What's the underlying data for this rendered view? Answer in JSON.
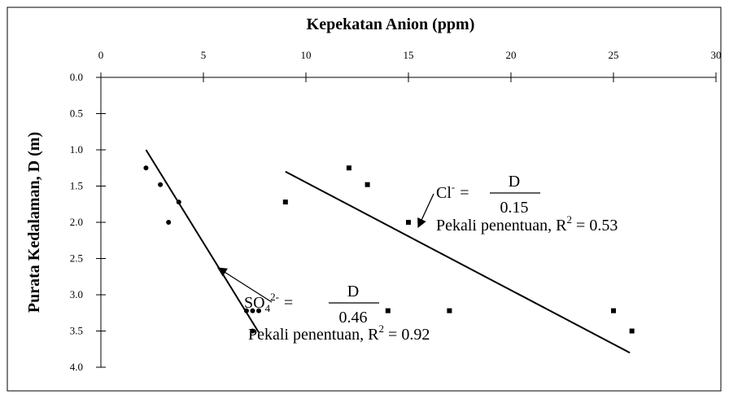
{
  "chart_data": {
    "type": "scatter",
    "title": "Kepekatan Anion (ppm)",
    "y_label": "Purata Kedalaman, D (m)",
    "xlim": [
      0,
      30
    ],
    "xticks": [
      0,
      5,
      10,
      15,
      20,
      25,
      30
    ],
    "ylim": [
      0,
      4
    ],
    "y_inverted": true,
    "yticks": [
      {
        "value": 0,
        "label": "0.0"
      },
      0.5,
      {
        "value": 1,
        "label": "1.0"
      },
      1.5,
      {
        "value": 2,
        "label": "2.0"
      },
      2.5,
      {
        "value": 3,
        "label": "3.0"
      },
      3.5,
      {
        "value": 4,
        "label": "4.0"
      }
    ],
    "series": [
      {
        "color": "#000000",
        "marker": "circle",
        "x": [
          2.2,
          2.9,
          3.3,
          3.8,
          7.1,
          7.4,
          7.4,
          7.7
        ],
        "values": [
          1.25,
          1.48,
          2.0,
          1.72,
          3.22,
          3.22,
          3.5,
          3.22
        ],
        "trendline": {
          "x": [
            2.2,
            7.7
          ],
          "values": [
            1.0,
            3.52
          ]
        },
        "annotation": {
          "ion": "SO",
          "subscript": "4",
          "charge": "2-",
          "equals": "=",
          "numerator": "D",
          "denominator": 0.46,
          "r2_label": "Pekali penentuan, R",
          "r2_sup": "2",
          "r2_equals": "=",
          "r2": 0.92
        }
      },
      {
        "color": "#000000",
        "marker": "square",
        "x": [
          9.0,
          12.1,
          13.0,
          15.0,
          14.0,
          17.0,
          25.0,
          25.9
        ],
        "values": [
          1.72,
          1.25,
          1.48,
          2.0,
          3.22,
          3.22,
          3.22,
          3.5
        ],
        "trendline": {
          "x": [
            9.0,
            25.8
          ],
          "values": [
            1.3,
            3.8
          ]
        },
        "annotation": {
          "ion": "Cl",
          "charge": "-",
          "equals": "=",
          "numerator": "D",
          "denominator": 0.15,
          "r2_label": "Pekali penentuan, R",
          "r2_sup": "2",
          "r2_equals": "=",
          "r2": 0.53
        }
      }
    ]
  }
}
